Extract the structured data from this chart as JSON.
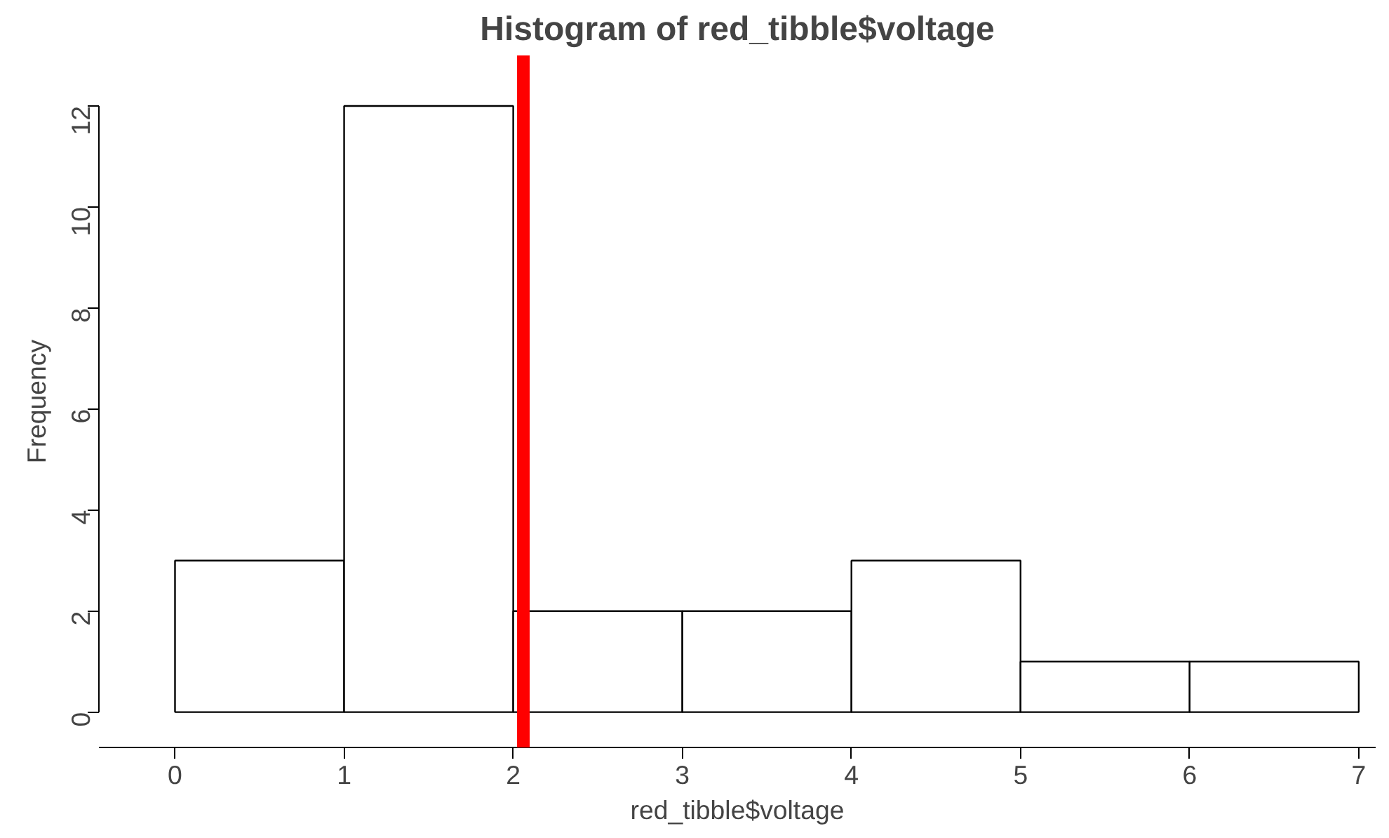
{
  "chart_data": {
    "type": "histogram",
    "title": "Histogram of red_tibble$voltage",
    "xlabel": "red_tibble$voltage",
    "ylabel": "Frequency",
    "bins": [
      0,
      1,
      2,
      3,
      4,
      5,
      6,
      7
    ],
    "values": [
      3,
      12,
      2,
      2,
      3,
      1,
      1
    ],
    "color": "#ffffff",
    "xlim": [
      -0.45,
      7.1
    ],
    "ylim": [
      -0.7,
      13
    ],
    "xticks": [
      0,
      1,
      2,
      3,
      4,
      5,
      6,
      7
    ],
    "yticks": [
      0,
      2,
      4,
      6,
      8,
      10,
      12
    ],
    "ref_lines": [
      {
        "axis": "x",
        "value": 2.06,
        "color": "#ff0000"
      }
    ],
    "grid": false
  }
}
